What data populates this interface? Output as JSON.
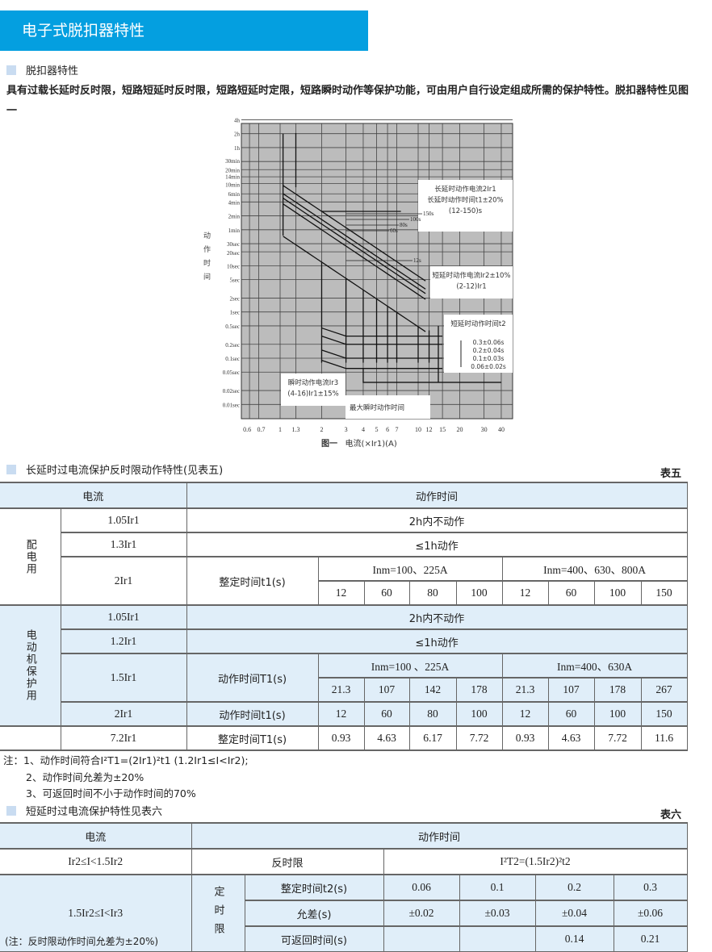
{
  "header": {
    "title": "电子式脱扣器特性"
  },
  "section1": {
    "title": "脱扣器特性",
    "text": "具有过载长延时反时限，短路短延时反时限，短路短延时定限，短路瞬时动作等保护功能，可由用户自行设定组成所需的保护特性。脱扣器特性见图一"
  },
  "figure": {
    "ylabel": "动作时间",
    "caption_no": "图一",
    "caption": "电流(×Ir1)(A)",
    "chart_data": {
      "type": "line",
      "x_scale": "log",
      "y_scale": "log",
      "x_ticks": [
        "0.6",
        "0.7",
        "1",
        "1.3",
        "2",
        "3",
        "4",
        "5",
        "6",
        "7",
        "10",
        "12",
        "15",
        "20",
        "30",
        "40"
      ],
      "y_ticks": [
        "4h",
        "2h",
        "1h",
        "30min",
        "20min",
        "14min",
        "10min",
        "6min",
        "4min",
        "2min",
        "1min",
        "30sec",
        "20sec",
        "10sec",
        "5sec",
        "2sec",
        "1sec",
        "0.5sec",
        "0.2sec",
        "0.1sec",
        "0.05sec",
        "0.02sec",
        "0.01sec"
      ],
      "curve_labels": [
        "150s",
        "100s",
        "80s",
        "60s",
        "12s"
      ],
      "annotations": {
        "long": [
          "长延时动作电流2Ir1",
          "长延时动作时间t1±20%",
          "(12-150)s"
        ],
        "short_current": [
          "短延时动作电流Ir2±10%",
          "(2-12)Ir1"
        ],
        "short_time": [
          "短延时动作时间t2",
          "0.3±0.06s",
          "0.2±0.04s",
          "0.1±0.03s",
          "0.06±0.02s"
        ],
        "inst": [
          "瞬时动作电流Ir3",
          "(4-16)Ir1±15%"
        ],
        "inst_max": "最大瞬时动作时间"
      }
    }
  },
  "table5": {
    "section": "长延时过电流保护反时限动作特性(见表五)",
    "no": "表五",
    "h_current": "电流",
    "h_time": "动作时间",
    "g1": "配电用",
    "g2": "电动机保护用",
    "r1": {
      "c": "1.05Ir1",
      "v": "2h内不动作"
    },
    "r2": {
      "c": "1.3Ir1",
      "v": "≤1h动作"
    },
    "r3": {
      "c": "2Ir1",
      "label": "整定时间t1(s)",
      "inA": "Inm=100、225A",
      "inB": "Inm=400、630、800A",
      "vals": [
        "12",
        "60",
        "80",
        "100",
        "12",
        "60",
        "100",
        "150"
      ]
    },
    "r4": {
      "c": "1.05Ir1",
      "v": "2h内不动作"
    },
    "r5": {
      "c": "1.2Ir1",
      "v": "≤1h动作"
    },
    "r6": {
      "c": "1.5Ir1",
      "label": "动作时间T1(s)",
      "inA": "Inm=100 、225A",
      "inB": "Inm=400、630A",
      "vals": [
        "21.3",
        "107",
        "142",
        "178",
        "21.3",
        "107",
        "178",
        "267"
      ]
    },
    "r7": {
      "c": "2Ir1",
      "label": "动作时间t1(s)",
      "vals": [
        "12",
        "60",
        "80",
        "100",
        "12",
        "60",
        "100",
        "150"
      ]
    },
    "r8": {
      "c": "7.2Ir1",
      "label": "整定时间T1(s)",
      "vals": [
        "0.93",
        "4.63",
        "6.17",
        "7.72",
        "0.93",
        "4.63",
        "7.72",
        "11.6"
      ]
    }
  },
  "notes": [
    "注：1、动作时间符合I²T1=(2Ir1)²t1   (1.2Ir1≤I<Ir2);",
    "2、动作时间允差为±20%",
    "3、可返回时间不小于动作时间的70%"
  ],
  "table6": {
    "section": "短延时过电流保护特性见表六",
    "no": "表六",
    "h_current": "电流",
    "h_time": "动作时间",
    "r1": {
      "c": "Ir2≤I<1.5Ir2",
      "a": "反时限",
      "b": "I²T2=(1.5Ir2)²t2"
    },
    "c2": "1.5Ir2≤I<Ir3",
    "c2note": "(注：反时限动作时间允差为±20%)",
    "def": "定时限",
    "rows": [
      {
        "label": "整定时间t2(s)",
        "vals": [
          "0.06",
          "0.1",
          "0.2",
          "0.3"
        ]
      },
      {
        "label": "允差(s)",
        "vals": [
          "±0.02",
          "±0.03",
          "±0.04",
          "±0.06"
        ]
      },
      {
        "label": "可返回时间(s)",
        "vals": [
          "",
          "",
          "0.14",
          "0.21"
        ]
      }
    ]
  }
}
